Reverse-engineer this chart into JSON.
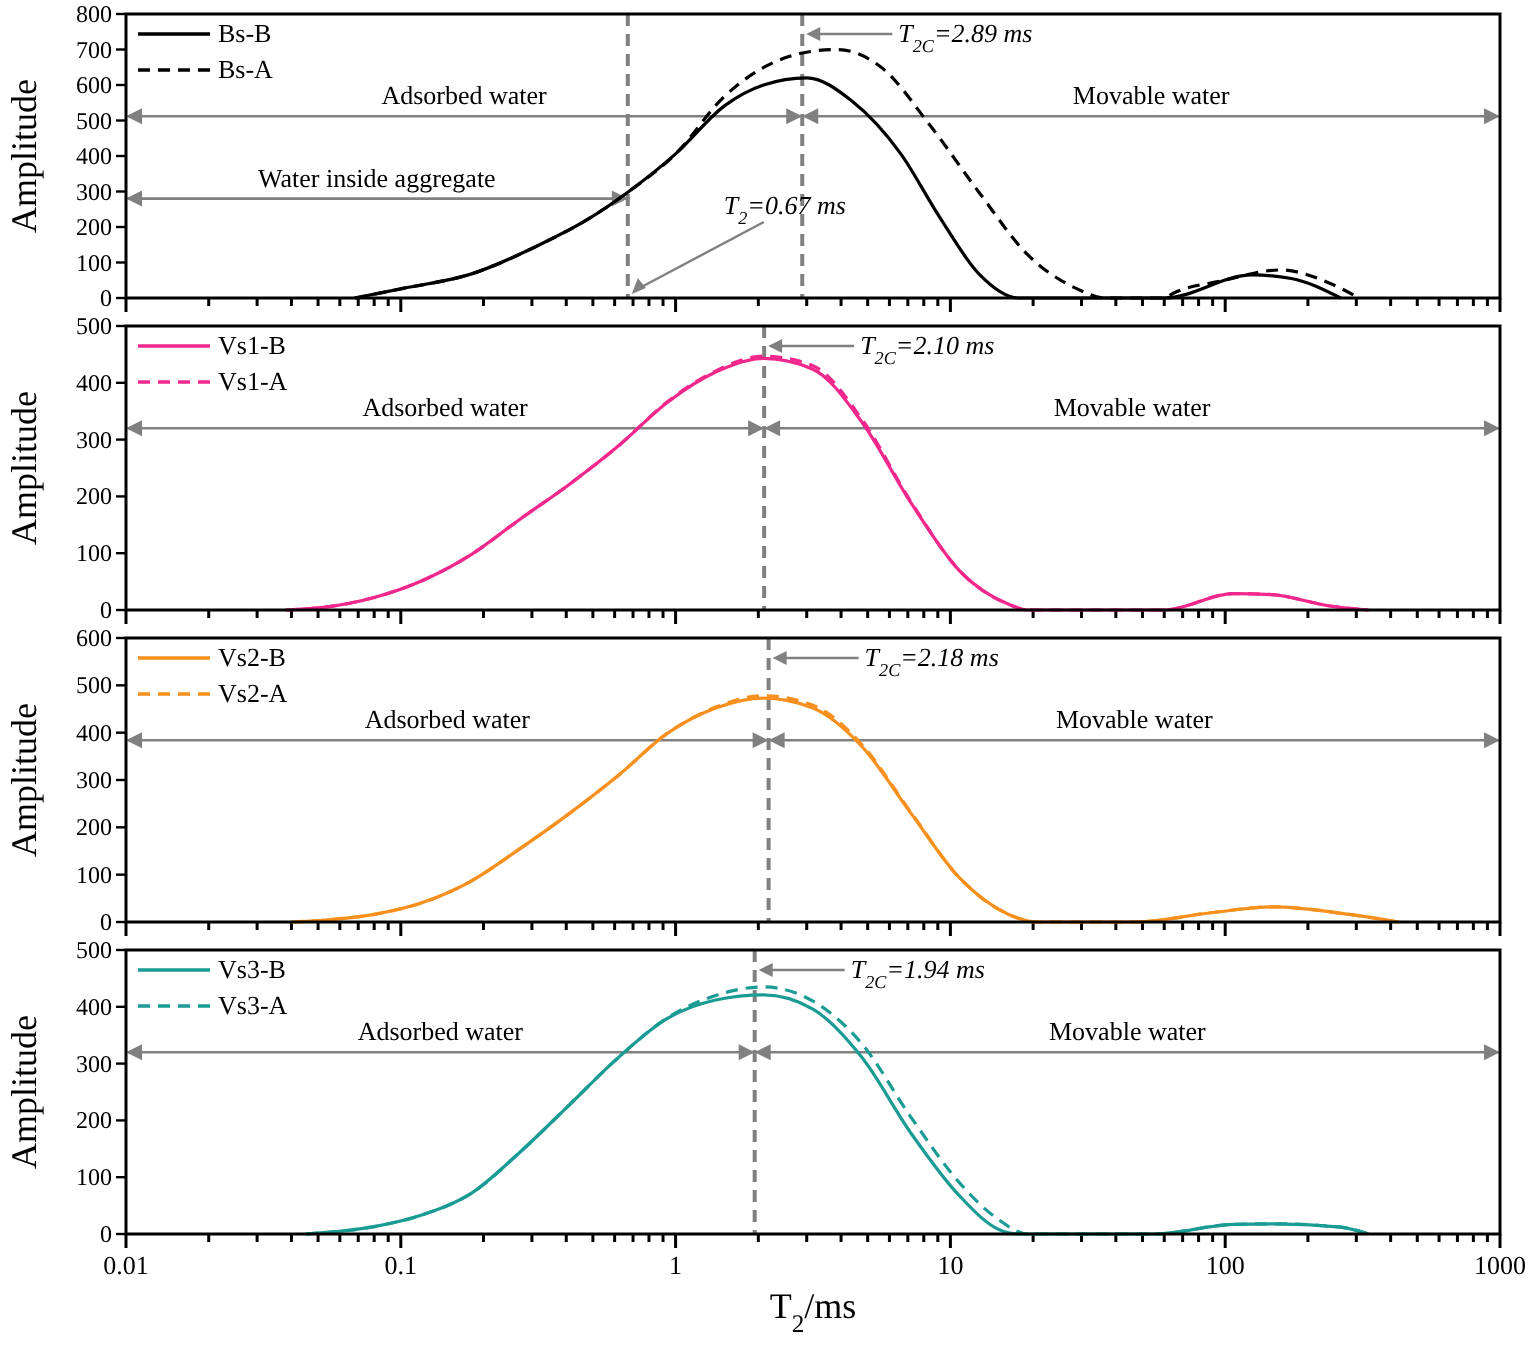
{
  "chart_data": [
    {
      "type": "line",
      "ylabel": "Amplitude",
      "xlim": [
        0.01,
        1000
      ],
      "ylim": [
        0,
        800
      ],
      "log": "x",
      "tick_labels": "y",
      "legend": "top left",
      "yticks": [
        0,
        100,
        200,
        300,
        400,
        500,
        600,
        700,
        800
      ],
      "xticks": [
        0.01,
        {
          "value": 0.02,
          "label": null
        },
        {
          "value": 0.03,
          "label": null
        },
        {
          "value": 0.04,
          "label": null
        },
        {
          "value": 0.05,
          "label": null
        },
        {
          "value": 0.06,
          "label": null
        },
        {
          "value": 0.07,
          "label": null
        },
        {
          "value": 0.08,
          "label": null
        },
        {
          "value": 0.09,
          "label": null
        },
        0.1,
        {
          "value": 0.2,
          "label": null
        },
        {
          "value": 0.3,
          "label": null
        },
        {
          "value": 0.4,
          "label": null
        },
        {
          "value": 0.5,
          "label": null
        },
        {
          "value": 0.6,
          "label": null
        },
        {
          "value": 0.7,
          "label": null
        },
        {
          "value": 0.8,
          "label": null
        },
        {
          "value": 0.9,
          "label": null
        },
        1,
        {
          "value": 2,
          "label": null
        },
        {
          "value": 3,
          "label": null
        },
        {
          "value": 4,
          "label": null
        },
        {
          "value": 5,
          "label": null
        },
        {
          "value": 6,
          "label": null
        },
        {
          "value": 7,
          "label": null
        },
        {
          "value": 8,
          "label": null
        },
        {
          "value": 9,
          "label": null
        },
        10,
        {
          "value": 20,
          "label": null
        },
        {
          "value": 30,
          "label": null
        },
        {
          "value": 40,
          "label": null
        },
        {
          "value": 50,
          "label": null
        },
        {
          "value": 60,
          "label": null
        },
        {
          "value": 70,
          "label": null
        },
        {
          "value": 80,
          "label": null
        },
        {
          "value": 90,
          "label": null
        },
        100,
        {
          "value": 200,
          "label": null
        },
        {
          "value": 300,
          "label": null
        },
        {
          "value": 400,
          "label": null
        },
        {
          "value": 500,
          "label": null
        },
        {
          "value": 600,
          "label": null
        },
        {
          "value": 700,
          "label": null
        },
        {
          "value": 800,
          "label": null
        },
        {
          "value": 900,
          "label": null
        },
        1000
      ],
      "series": [
        {
          "name": "Bs-B",
          "color": "#000000",
          "line_style": "solid",
          "x": [
            0.068,
            0.102,
            0.181,
            0.32,
            0.48,
            0.67,
            1.0,
            1.51,
            2.09,
            3.0,
            4.38,
            6.6,
            9.1,
            12.7,
            17.7,
            60,
            125,
            174,
            263
          ],
          "values": [
            0,
            27,
            68,
            150,
            222,
            298,
            406,
            542,
            600,
            620,
            555,
            406,
            230,
            68,
            0,
            0,
            65,
            55,
            0
          ]
        },
        {
          "name": "Bs-A",
          "color": "#000000",
          "line_style": "dashed",
          "x": [
            0.068,
            0.102,
            0.181,
            0.32,
            0.48,
            0.67,
            1.0,
            1.51,
            2.28,
            2.89,
            3.85,
            5.6,
            8.4,
            12.7,
            19.1,
            28.7,
            36.7,
            60,
            65,
            98,
            159,
            241,
            307
          ],
          "values": [
            0,
            27,
            68,
            150,
            222,
            298,
            406,
            569,
            664,
            690,
            700,
            650,
            488,
            298,
            122,
            27,
            0,
            0,
            14,
            49,
            79,
            41,
            0
          ]
        }
      ],
      "ref_lines": [
        {
          "axis": "x",
          "value": 2.89,
          "label": "T$_{2C}$=2.89 ms",
          "color": "#808080",
          "line_style": "dashed"
        },
        {
          "axis": "x",
          "value": 0.67,
          "label": "T$_{2}$=0.67 ms",
          "color": "#808080",
          "line_style": "dashed"
        }
      ],
      "annotations": [
        "Adsorbed water",
        "Movable water",
        "Water inside aggregate"
      ]
    },
    {
      "type": "line",
      "ylabel": "Amplitude",
      "xlim": [
        0.01,
        1000
      ],
      "ylim": [
        0,
        500
      ],
      "log": "x",
      "tick_labels": "y",
      "legend": "top left",
      "yticks": [
        0,
        100,
        200,
        300,
        400,
        500
      ],
      "xticks": [
        0.01,
        {
          "value": 0.02,
          "label": null
        },
        {
          "value": 0.03,
          "label": null
        },
        {
          "value": 0.04,
          "label": null
        },
        {
          "value": 0.05,
          "label": null
        },
        {
          "value": 0.06,
          "label": null
        },
        {
          "value": 0.07,
          "label": null
        },
        {
          "value": 0.08,
          "label": null
        },
        {
          "value": 0.09,
          "label": null
        },
        0.1,
        {
          "value": 0.2,
          "label": null
        },
        {
          "value": 0.3,
          "label": null
        },
        {
          "value": 0.4,
          "label": null
        },
        {
          "value": 0.5,
          "label": null
        },
        {
          "value": 0.6,
          "label": null
        },
        {
          "value": 0.7,
          "label": null
        },
        {
          "value": 0.8,
          "label": null
        },
        {
          "value": 0.9,
          "label": null
        },
        1,
        {
          "value": 2,
          "label": null
        },
        {
          "value": 3,
          "label": null
        },
        {
          "value": 4,
          "label": null
        },
        {
          "value": 5,
          "label": null
        },
        {
          "value": 6,
          "label": null
        },
        {
          "value": 7,
          "label": null
        },
        {
          "value": 8,
          "label": null
        },
        {
          "value": 9,
          "label": null
        },
        10,
        {
          "value": 20,
          "label": null
        },
        {
          "value": 30,
          "label": null
        },
        {
          "value": 40,
          "label": null
        },
        {
          "value": 50,
          "label": null
        },
        {
          "value": 60,
          "label": null
        },
        {
          "value": 70,
          "label": null
        },
        {
          "value": 80,
          "label": null
        },
        {
          "value": 90,
          "label": null
        },
        100,
        {
          "value": 200,
          "label": null
        },
        {
          "value": 300,
          "label": null
        },
        {
          "value": 400,
          "label": null
        },
        {
          "value": 500,
          "label": null
        },
        {
          "value": 600,
          "label": null
        },
        {
          "value": 700,
          "label": null
        },
        {
          "value": 800,
          "label": null
        },
        {
          "value": 900,
          "label": null
        },
        1000
      ],
      "series": [
        {
          "name": "Vs1-B",
          "color": "#f0288c",
          "line_style": "solid",
          "x": [
            0.038,
            0.053,
            0.08,
            0.12,
            0.181,
            0.27,
            0.41,
            0.62,
            0.93,
            1.4,
            2.09,
            3.16,
            4.76,
            7.2,
            10.8,
            16.3,
            19.1,
            60,
            107,
            148,
            241,
            332
          ],
          "values": [
            0,
            5,
            22,
            52,
            98,
            159,
            221,
            289,
            365,
            419,
            443,
            424,
            331,
            188,
            69,
            10,
            0,
            0,
            29,
            27,
            7,
            0
          ]
        },
        {
          "name": "Vs1-A",
          "color": "#f0288c",
          "line_style": "dashed",
          "x": [
            0.038,
            0.053,
            0.08,
            0.12,
            0.181,
            0.27,
            0.41,
            0.62,
            0.93,
            1.4,
            2.09,
            3.16,
            4.76,
            7.2,
            10.8,
            16.3,
            19.1,
            60,
            107,
            148,
            241,
            332
          ],
          "values": [
            0,
            5,
            22,
            52,
            98,
            159,
            221,
            289,
            366,
            421,
            447,
            430,
            336,
            190,
            69,
            10,
            0,
            0,
            29,
            27,
            7,
            0
          ]
        }
      ],
      "ref_lines": [
        {
          "axis": "x",
          "value": 2.1,
          "label": "T$_{2C}$=2.10 ms",
          "color": "#808080",
          "line_style": "dashed"
        }
      ],
      "annotations": [
        "Adsorbed water",
        "Movable water"
      ]
    },
    {
      "type": "line",
      "ylabel": "Amplitude",
      "xlim": [
        0.01,
        1000
      ],
      "ylim": [
        0,
        600
      ],
      "log": "x",
      "tick_labels": "y",
      "legend": "top left",
      "yticks": [
        0,
        100,
        200,
        300,
        400,
        500,
        600
      ],
      "xticks": [
        0.01,
        {
          "value": 0.02,
          "label": null
        },
        {
          "value": 0.03,
          "label": null
        },
        {
          "value": 0.04,
          "label": null
        },
        {
          "value": 0.05,
          "label": null
        },
        {
          "value": 0.06,
          "label": null
        },
        {
          "value": 0.07,
          "label": null
        },
        {
          "value": 0.08,
          "label": null
        },
        {
          "value": 0.09,
          "label": null
        },
        0.1,
        {
          "value": 0.2,
          "label": null
        },
        {
          "value": 0.3,
          "label": null
        },
        {
          "value": 0.4,
          "label": null
        },
        {
          "value": 0.5,
          "label": null
        },
        {
          "value": 0.6,
          "label": null
        },
        {
          "value": 0.7,
          "label": null
        },
        {
          "value": 0.8,
          "label": null
        },
        {
          "value": 0.9,
          "label": null
        },
        1,
        {
          "value": 2,
          "label": null
        },
        {
          "value": 3,
          "label": null
        },
        {
          "value": 4,
          "label": null
        },
        {
          "value": 5,
          "label": null
        },
        {
          "value": 6,
          "label": null
        },
        {
          "value": 7,
          "label": null
        },
        {
          "value": 8,
          "label": null
        },
        {
          "value": 9,
          "label": null
        },
        10,
        {
          "value": 20,
          "label": null
        },
        {
          "value": 30,
          "label": null
        },
        {
          "value": 40,
          "label": null
        },
        {
          "value": 50,
          "label": null
        },
        {
          "value": 60,
          "label": null
        },
        {
          "value": 70,
          "label": null
        },
        {
          "value": 80,
          "label": null
        },
        {
          "value": 90,
          "label": null
        },
        100,
        {
          "value": 200,
          "label": null
        },
        {
          "value": 300,
          "label": null
        },
        {
          "value": 400,
          "label": null
        },
        {
          "value": 500,
          "label": null
        },
        {
          "value": 600,
          "label": null
        },
        {
          "value": 700,
          "label": null
        },
        {
          "value": 800,
          "label": null
        },
        {
          "value": 900,
          "label": null
        },
        1000
      ],
      "series": [
        {
          "name": "Vs2-B",
          "color": "#f7901e",
          "line_style": "solid",
          "x": [
            0.04,
            0.053,
            0.08,
            0.12,
            0.181,
            0.27,
            0.41,
            0.62,
            0.93,
            1.4,
            2.09,
            3.16,
            4.76,
            7.2,
            10.8,
            16.3,
            20.7,
            47,
            90,
            148,
            283,
            427
          ],
          "values": [
            0,
            4,
            16,
            41,
            87,
            154,
            229,
            310,
            398,
            452,
            473,
            452,
            371,
            229,
            93,
            16,
            0,
            0,
            20,
            32,
            16,
            0
          ]
        },
        {
          "name": "Vs2-A",
          "color": "#f7901e",
          "line_style": "dashed",
          "x": [
            0.04,
            0.053,
            0.08,
            0.12,
            0.181,
            0.27,
            0.41,
            0.62,
            0.93,
            1.4,
            2.09,
            3.16,
            4.76,
            7.2,
            10.8,
            16.3,
            20.7,
            47,
            90,
            148,
            283,
            427
          ],
          "values": [
            0,
            4,
            16,
            41,
            87,
            154,
            229,
            310,
            398,
            454,
            478,
            458,
            375,
            231,
            93,
            16,
            0,
            0,
            20,
            32,
            16,
            0
          ]
        }
      ],
      "ref_lines": [
        {
          "axis": "x",
          "value": 2.18,
          "label": "T$_{2C}$=2.18 ms",
          "color": "#808080",
          "line_style": "dashed"
        }
      ],
      "annotations": [
        "Adsorbed water",
        "Movable water"
      ]
    },
    {
      "type": "line",
      "ylabel": "Amplitude",
      "xlabel": "T$_{2}$/ms",
      "xlim": [
        0.01,
        1000
      ],
      "ylim": [
        0,
        500
      ],
      "log": "x",
      "legend": "top left",
      "yticks": [
        0,
        100,
        200,
        300,
        400,
        500
      ],
      "xticks": [
        0.01,
        {
          "value": 0.02,
          "label": null
        },
        {
          "value": 0.03,
          "label": null
        },
        {
          "value": 0.04,
          "label": null
        },
        {
          "value": 0.05,
          "label": null
        },
        {
          "value": 0.06,
          "label": null
        },
        {
          "value": 0.07,
          "label": null
        },
        {
          "value": 0.08,
          "label": null
        },
        {
          "value": 0.09,
          "label": null
        },
        0.1,
        {
          "value": 0.2,
          "label": null
        },
        {
          "value": 0.3,
          "label": null
        },
        {
          "value": 0.4,
          "label": null
        },
        {
          "value": 0.5,
          "label": null
        },
        {
          "value": 0.6,
          "label": null
        },
        {
          "value": 0.7,
          "label": null
        },
        {
          "value": 0.8,
          "label": null
        },
        {
          "value": 0.9,
          "label": null
        },
        1,
        {
          "value": 2,
          "label": null
        },
        {
          "value": 3,
          "label": null
        },
        {
          "value": 4,
          "label": null
        },
        {
          "value": 5,
          "label": null
        },
        {
          "value": 6,
          "label": null
        },
        {
          "value": 7,
          "label": null
        },
        {
          "value": 8,
          "label": null
        },
        {
          "value": 9,
          "label": null
        },
        10,
        {
          "value": 20,
          "label": null
        },
        {
          "value": 30,
          "label": null
        },
        {
          "value": 40,
          "label": null
        },
        {
          "value": 50,
          "label": null
        },
        {
          "value": 60,
          "label": null
        },
        {
          "value": 70,
          "label": null
        },
        {
          "value": 80,
          "label": null
        },
        {
          "value": 90,
          "label": null
        },
        100,
        {
          "value": 200,
          "label": null
        },
        {
          "value": 300,
          "label": null
        },
        {
          "value": 400,
          "label": null
        },
        {
          "value": 500,
          "label": null
        },
        {
          "value": 600,
          "label": null
        },
        {
          "value": 700,
          "label": null
        },
        {
          "value": 800,
          "label": null
        },
        {
          "value": 900,
          "label": null
        },
        1000
      ],
      "series": [
        {
          "name": "Vs3-B",
          "color": "#1a9b94",
          "line_style": "solid",
          "x": [
            0.045,
            0.08,
            0.12,
            0.181,
            0.27,
            0.41,
            0.62,
            0.93,
            1.4,
            2.09,
            3.16,
            4.76,
            7.2,
            10.8,
            15,
            17.7,
            55,
            107,
            148,
            263,
            332
          ],
          "values": [
            0,
            13,
            34,
            72,
            143,
            227,
            311,
            379,
            412,
            421,
            396,
            311,
            177,
            67,
            8,
            0,
            0,
            17,
            18,
            12,
            0
          ]
        },
        {
          "name": "Vs3-A",
          "color": "#1a9b94",
          "line_style": "dashed",
          "x": [
            0.045,
            0.08,
            0.12,
            0.181,
            0.27,
            0.41,
            0.62,
            0.93,
            1.4,
            2.09,
            3.16,
            4.76,
            7.2,
            10.8,
            15,
            19.1,
            55,
            107,
            148,
            263,
            332
          ],
          "values": [
            0,
            13,
            34,
            72,
            143,
            227,
            311,
            380,
            420,
            435,
            410,
            335,
            205,
            90,
            25,
            0,
            0,
            17,
            18,
            12,
            0
          ]
        }
      ],
      "ref_lines": [
        {
          "axis": "x",
          "value": 1.94,
          "label": "T$_{2C}$=1.94 ms",
          "color": "#808080",
          "line_style": "dashed"
        }
      ],
      "annotations": [
        "Adsorbed water",
        "Movable water"
      ]
    }
  ]
}
